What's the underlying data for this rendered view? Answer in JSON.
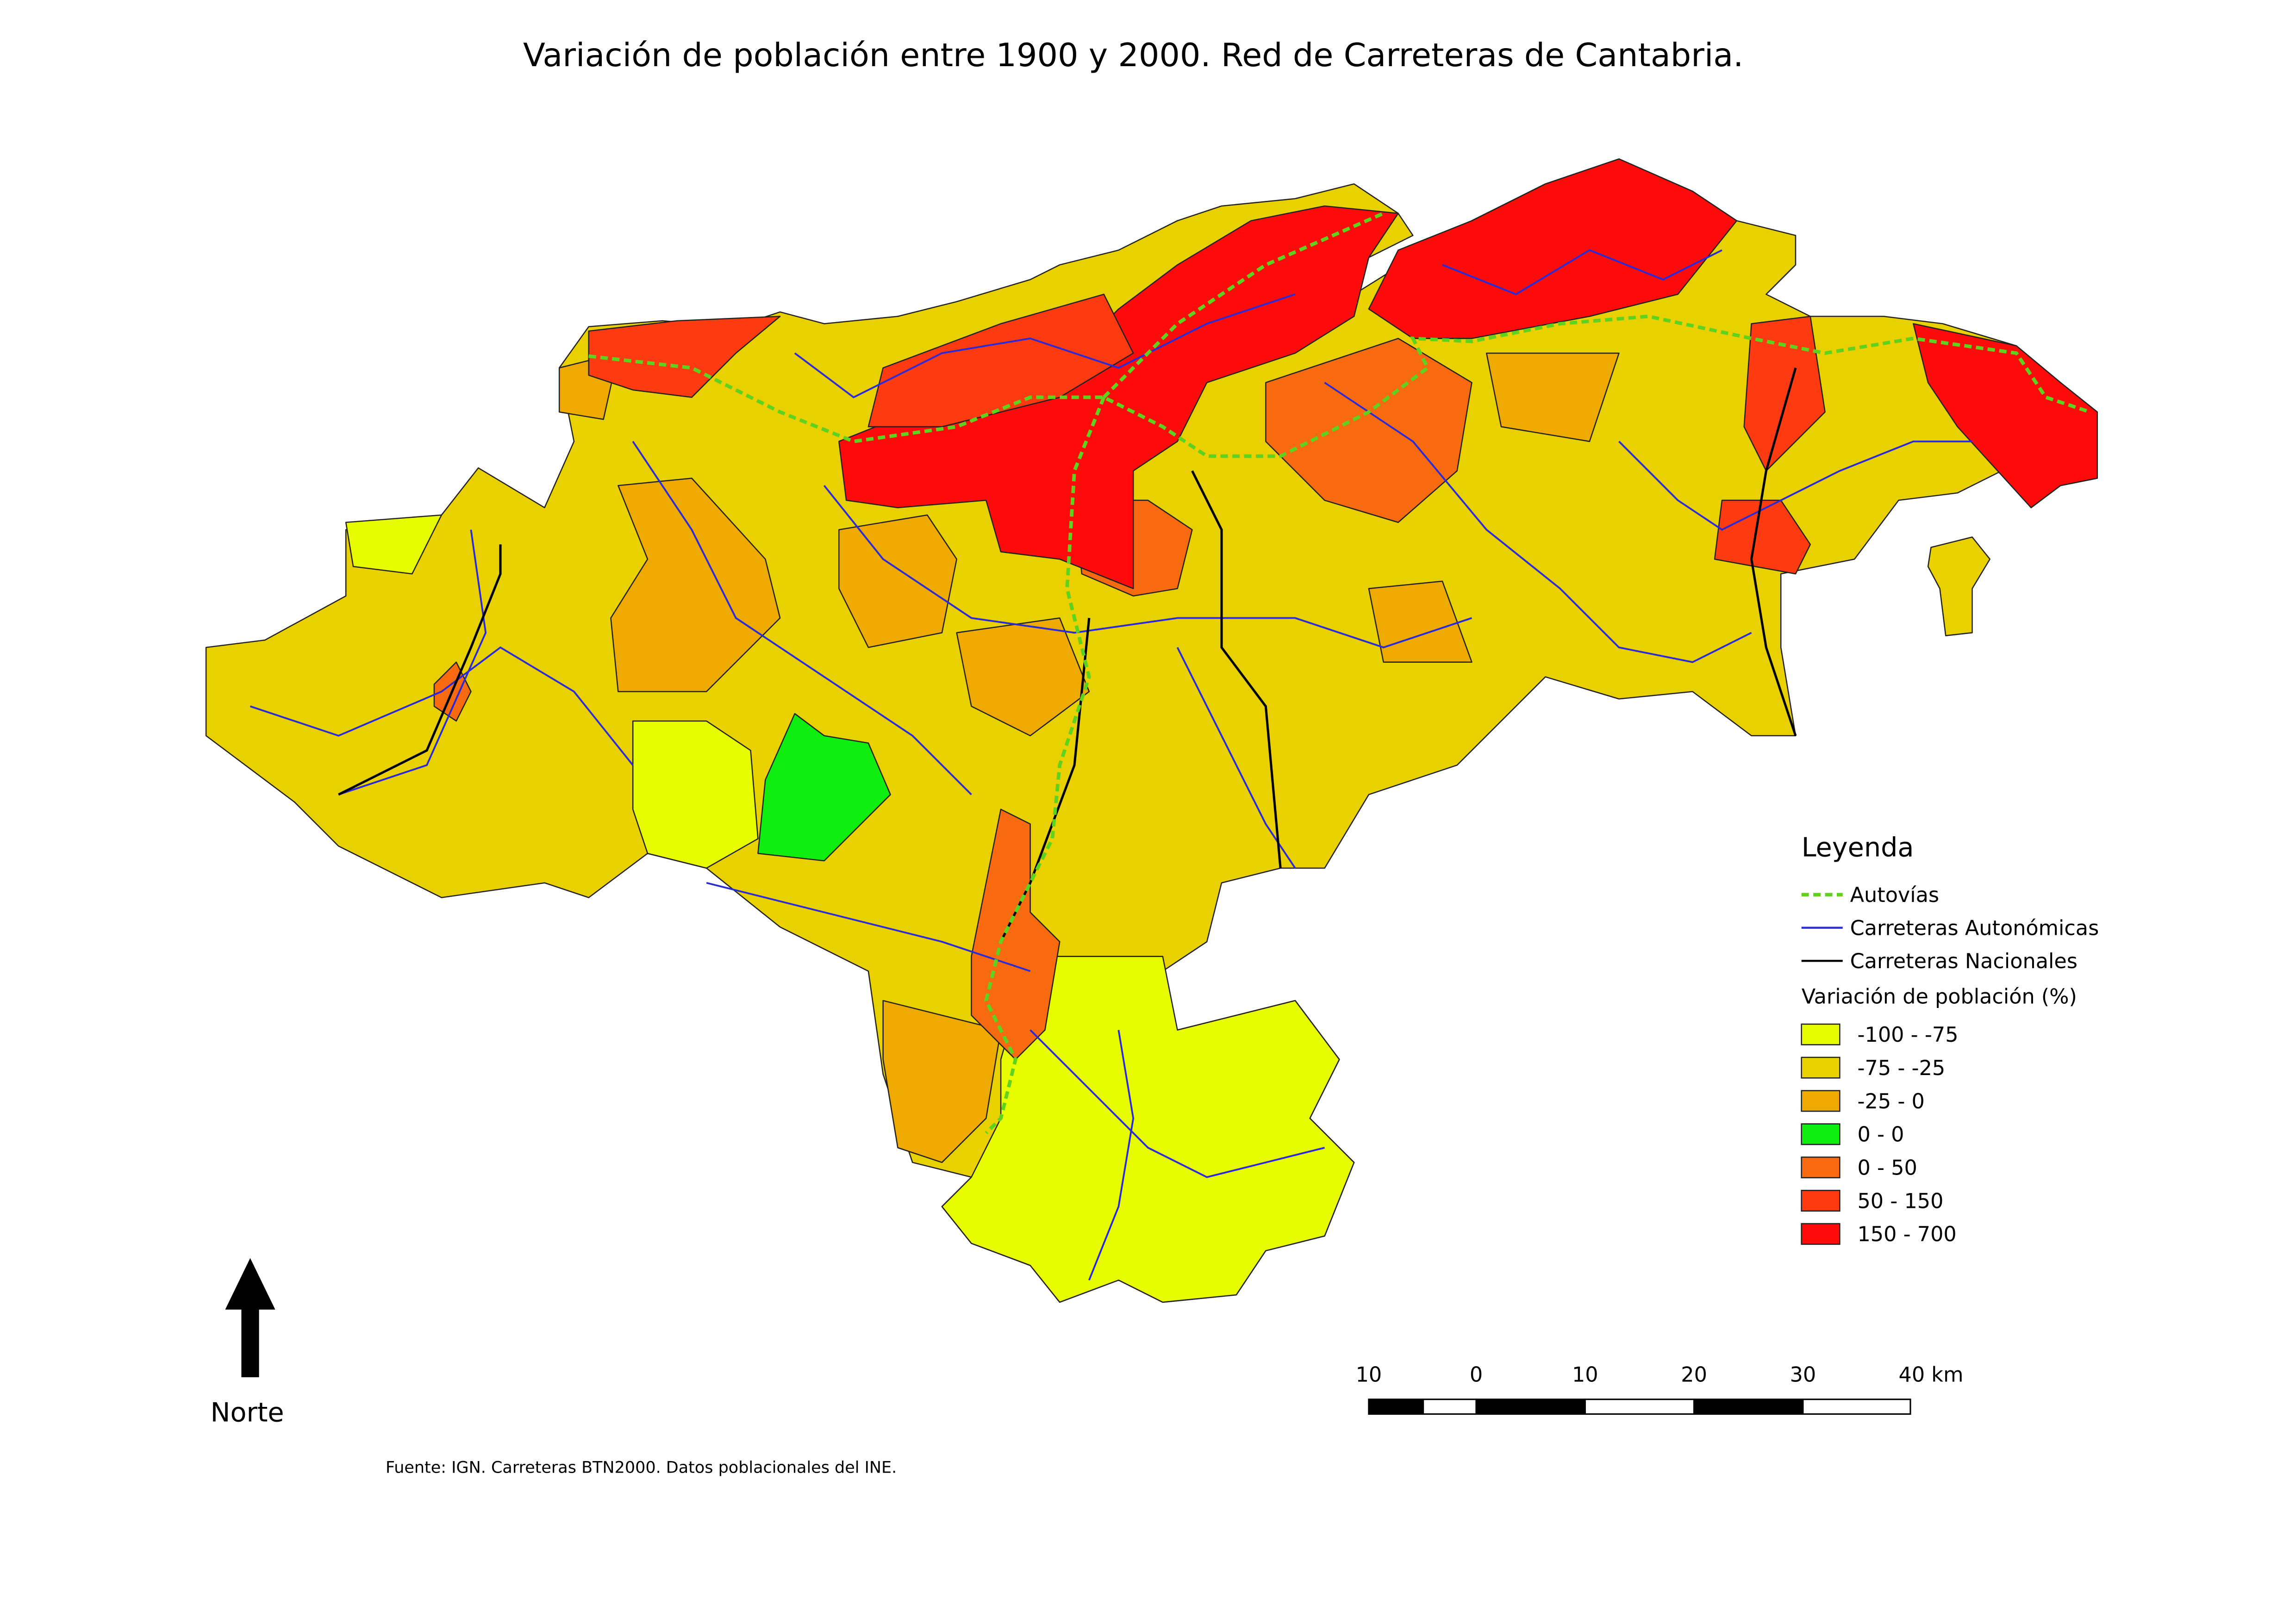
{
  "title": "Variación de población entre 1900 y 2000. Red de Carreteras de Cantabria.",
  "legend": {
    "title": "Leyenda",
    "lines": [
      {
        "label": "Autovías",
        "color": "#5fd21f",
        "dashed": true
      },
      {
        "label": "Carreteras Autonómicas",
        "color": "#2b2bd6",
        "dashed": false
      },
      {
        "label": "Carreteras Nacionales",
        "color": "#000000",
        "dashed": false
      }
    ],
    "classes_title": "Variación de población (%)",
    "classes": [
      {
        "label": "-100 - -75",
        "color": "#e8fc00"
      },
      {
        "label": "-75 - -25",
        "color": "#e9d000"
      },
      {
        "label": "-25 - 0",
        "color": "#eeaa00"
      },
      {
        "label": "0 - 0",
        "color": "#10ee10"
      },
      {
        "label": "0 - 50",
        "color": "#f76a10"
      },
      {
        "label": "50 - 150",
        "color": "#fd3a10"
      },
      {
        "label": "150 - 700",
        "color": "#ff0a0a"
      }
    ]
  },
  "scale_bar": {
    "labels": [
      "10",
      "0",
      "10",
      "20",
      "30",
      "40 km"
    ]
  },
  "north": "Norte",
  "source": "Fuente: IGN. Carreteras BTN2000. Datos poblacionales del INE."
}
